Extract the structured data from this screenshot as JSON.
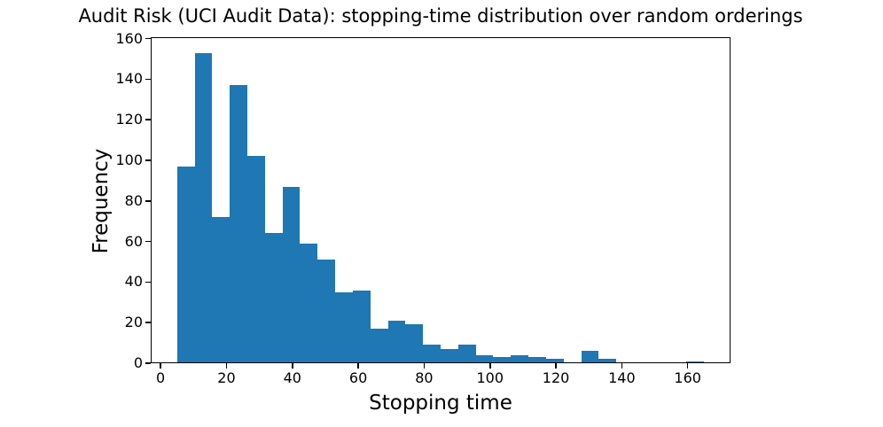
{
  "chart_data": {
    "type": "bar",
    "subtype": "histogram",
    "title": "Audit Risk (UCI Audit Data): stopping-time distribution over random orderings",
    "xlabel": "Stopping time",
    "ylabel": "Frequency",
    "bin_start": 5,
    "bin_width": 5.3333333,
    "bin_end": 165,
    "values": [
      97,
      153,
      72,
      137,
      102,
      64,
      87,
      59,
      51,
      35,
      36,
      17,
      21,
      19,
      9,
      7,
      9,
      4,
      3,
      4,
      3,
      2,
      0,
      6,
      2,
      0,
      0,
      0,
      0,
      1
    ],
    "xticks": [
      0,
      20,
      40,
      60,
      80,
      100,
      120,
      140,
      160
    ],
    "yticks": [
      0,
      20,
      40,
      60,
      80,
      100,
      120,
      140,
      160
    ],
    "xlim": [
      -3,
      173
    ],
    "ylim": [
      0,
      160.7
    ],
    "bar_color": "#1f77b4",
    "axis_color": "#000000",
    "background_color": "#ffffff",
    "grid": false,
    "legend_position": "none"
  }
}
